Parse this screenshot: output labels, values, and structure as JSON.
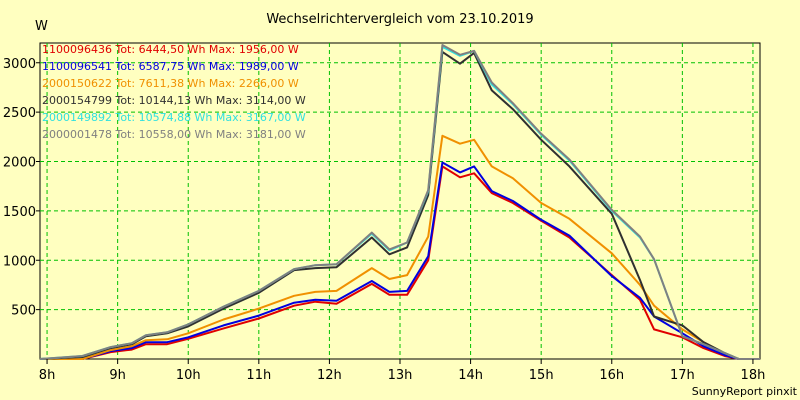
{
  "chart_data": {
    "type": "line",
    "title": "Wechselrichtervergleich vom 23.10.2019",
    "ylabel": "W",
    "xlabel": "",
    "footer": "SunnyReport pinxit",
    "xlim": [
      7.9,
      18.1
    ],
    "ylim": [
      0,
      3200
    ],
    "x_ticks": [
      8,
      9,
      10,
      11,
      12,
      13,
      14,
      15,
      16,
      17,
      18
    ],
    "x_tick_labels": [
      "8h",
      "9h",
      "10h",
      "11h",
      "12h",
      "13h",
      "14h",
      "15h",
      "16h",
      "17h",
      "18h"
    ],
    "y_ticks": [
      500,
      1000,
      1500,
      2000,
      2500,
      3000
    ],
    "y_tick_labels": [
      "500",
      "1000",
      "1500",
      "2000",
      "2500",
      "3000"
    ],
    "grid": true,
    "legend_position": "top-left",
    "series": [
      {
        "name": "1100096436",
        "legend": "1100096436 Tot: 6444,50 Wh Max: 1956,00 W",
        "color": "#e00000",
        "x": [
          7.9,
          8.5,
          8.9,
          9.2,
          9.4,
          9.7,
          10.0,
          10.5,
          11.0,
          11.5,
          11.8,
          12.1,
          12.6,
          12.85,
          13.1,
          13.4,
          13.6,
          13.85,
          14.05,
          14.3,
          14.6,
          15.0,
          15.4,
          16.0,
          16.4,
          16.6,
          17.0,
          17.3,
          17.6,
          17.8,
          18.1
        ],
        "y": [
          0,
          0,
          70,
          95,
          150,
          150,
          205,
          310,
          410,
          540,
          580,
          560,
          760,
          650,
          650,
          1000,
          1950,
          1840,
          1880,
          1680,
          1580,
          1400,
          1230,
          850,
          600,
          300,
          220,
          110,
          30,
          0,
          0
        ]
      },
      {
        "name": "1100096541",
        "legend": "1100096541 Tot: 6587,75 Wh Max: 1989,00 W",
        "color": "#0000e0",
        "x": [
          7.9,
          8.5,
          8.9,
          9.2,
          9.4,
          9.7,
          10.0,
          10.5,
          11.0,
          11.5,
          11.8,
          12.1,
          12.6,
          12.85,
          13.1,
          13.4,
          13.6,
          13.85,
          14.05,
          14.3,
          14.6,
          15.0,
          15.4,
          16.0,
          16.4,
          16.6,
          17.0,
          17.3,
          17.6,
          17.8,
          18.1
        ],
        "y": [
          0,
          0,
          80,
          110,
          170,
          170,
          220,
          340,
          440,
          570,
          600,
          590,
          790,
          680,
          690,
          1040,
          1990,
          1890,
          1950,
          1700,
          1600,
          1410,
          1250,
          840,
          620,
          430,
          260,
          130,
          40,
          0,
          0
        ]
      },
      {
        "name": "2000150622",
        "legend": "2000150622 Tot: 7611,38 Wh Max: 2266,00 W",
        "color": "#f09000",
        "x": [
          7.9,
          8.5,
          8.9,
          9.2,
          9.4,
          9.7,
          10.0,
          10.5,
          11.0,
          11.5,
          11.8,
          12.1,
          12.6,
          12.85,
          13.1,
          13.4,
          13.6,
          13.85,
          14.05,
          14.3,
          14.6,
          15.0,
          15.4,
          16.0,
          16.4,
          16.6,
          17.0,
          17.3,
          17.6,
          17.8,
          18.1
        ],
        "y": [
          0,
          0,
          90,
          130,
          190,
          200,
          260,
          400,
          510,
          640,
          680,
          690,
          920,
          810,
          850,
          1240,
          2260,
          2180,
          2220,
          1950,
          1830,
          1580,
          1420,
          1070,
          750,
          540,
          300,
          170,
          60,
          0,
          0
        ]
      },
      {
        "name": "2000154799",
        "legend": "2000154799 Tot: 10144,13 Wh Max: 3114,00 W",
        "color": "#303030",
        "x": [
          7.9,
          8.5,
          8.9,
          9.2,
          9.4,
          9.7,
          10.0,
          10.5,
          11.0,
          11.5,
          11.8,
          12.1,
          12.6,
          12.85,
          13.1,
          13.4,
          13.6,
          13.85,
          14.05,
          14.3,
          14.6,
          15.0,
          15.4,
          16.0,
          16.4,
          16.6,
          17.0,
          17.3,
          17.6,
          17.8,
          18.1
        ],
        "y": [
          0,
          20,
          110,
          150,
          230,
          260,
          330,
          510,
          670,
          900,
          920,
          930,
          1230,
          1060,
          1130,
          1660,
          3110,
          2990,
          3100,
          2720,
          2530,
          2220,
          1950,
          1470,
          800,
          430,
          340,
          170,
          60,
          0,
          0
        ]
      },
      {
        "name": "2000149892",
        "legend": "2000149892 Tot: 10574,88 Wh Max: 3167,00 W",
        "color": "#30e0e0",
        "x": [
          7.9,
          8.5,
          8.9,
          9.2,
          9.4,
          9.7,
          10.0,
          10.5,
          11.0,
          11.5,
          11.8,
          12.1,
          12.6,
          12.85,
          13.1,
          13.4,
          13.6,
          13.85,
          14.05,
          14.3,
          14.6,
          15.0,
          15.4,
          16.0,
          16.4,
          16.6,
          17.0,
          17.3,
          17.6,
          17.8,
          18.1
        ],
        "y": [
          0,
          30,
          120,
          160,
          240,
          270,
          350,
          530,
          690,
          910,
          950,
          960,
          1270,
          1100,
          1180,
          1700,
          3160,
          3070,
          3120,
          2780,
          2580,
          2270,
          2010,
          1500,
          1230,
          1010,
          230,
          150,
          60,
          0,
          0
        ]
      },
      {
        "name": "2000001478",
        "legend": "2000001478 Tot: 10558,00 Wh Max: 3181,00 W",
        "color": "#808080",
        "x": [
          7.9,
          8.5,
          8.9,
          9.2,
          9.4,
          9.7,
          10.0,
          10.5,
          11.0,
          11.5,
          11.8,
          12.1,
          12.6,
          12.85,
          13.1,
          13.4,
          13.6,
          13.85,
          14.05,
          14.3,
          14.6,
          15.0,
          15.4,
          16.0,
          16.4,
          16.6,
          17.0,
          17.3,
          17.6,
          17.8,
          18.1
        ],
        "y": [
          0,
          30,
          120,
          160,
          240,
          270,
          350,
          530,
          690,
          910,
          950,
          960,
          1280,
          1110,
          1180,
          1710,
          3180,
          3080,
          3120,
          2800,
          2590,
          2280,
          2020,
          1510,
          1240,
          1010,
          230,
          150,
          60,
          0,
          0
        ]
      }
    ]
  }
}
